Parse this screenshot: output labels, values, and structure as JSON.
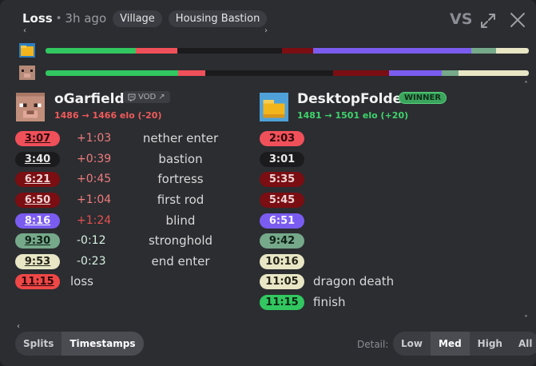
{
  "header": {
    "result": "Loss",
    "separator": "•",
    "time_ago": "3h ago",
    "chips": [
      "Village",
      "Housing Bastion"
    ],
    "vs": "VS"
  },
  "icons": {
    "expand": "expand-icon",
    "close": "close-icon",
    "vod": "twitch-icon",
    "external": "external-link-icon"
  },
  "colors": {
    "nether": "#f0505a",
    "bastion": "#1b1b1d",
    "fortress": "#7a0e12",
    "first_rod": "#7a0e12",
    "blind": "#7b5cf0",
    "stronghold": "#76a98a",
    "end": "#e8e6c4",
    "green": "#32c760",
    "loss": "#f04747"
  },
  "timeline": {
    "player1_fractions": [
      0.192,
      0.089,
      0.224,
      0.021,
      0.045,
      0.088,
      0.251,
      0.052,
      0.07
    ],
    "player2_fractions": [
      0.275,
      0.055,
      0.23,
      0.035,
      0.09,
      0.025,
      0.11,
      0.035,
      0.145
    ]
  },
  "players": {
    "left": {
      "name": "oGarfield",
      "vod_label": "VOD",
      "elo_change": "1486 → 1466 elo (-20)"
    },
    "right": {
      "name": "DesktopFolder",
      "badge": "WINNER",
      "elo_change": "1481 → 1501 elo (+20)"
    }
  },
  "splits": [
    {
      "left": "3:07",
      "diff": "+1:03",
      "event": "nether enter",
      "right": "2:03"
    },
    {
      "left": "3:40",
      "diff": "+0:39",
      "event": "bastion",
      "right": "3:01"
    },
    {
      "left": "6:21",
      "diff": "+0:45",
      "event": "fortress",
      "right": "5:35"
    },
    {
      "left": "6:50",
      "diff": "+1:04",
      "event": "first rod",
      "right": "5:45"
    },
    {
      "left": "8:16",
      "diff": "+1:24",
      "event": "blind",
      "right": "6:51"
    },
    {
      "left": "9:30",
      "diff": "-0:12",
      "event": "stronghold",
      "right": "9:42"
    },
    {
      "left": "9:53",
      "diff": "-0:23",
      "event": "end enter",
      "right": "10:16"
    }
  ],
  "left_final": {
    "time": "11:15",
    "label": "loss"
  },
  "right_extra": [
    {
      "time": "11:05",
      "label": "dragon death"
    },
    {
      "time": "11:15",
      "label": "finish"
    }
  ],
  "footer": {
    "view_tabs": [
      "Splits",
      "Timestamps"
    ],
    "active_view": "Timestamps",
    "detail_label": "Detail:",
    "detail_options": [
      "Low",
      "Med",
      "High",
      "All"
    ],
    "active_detail": "Med"
  }
}
